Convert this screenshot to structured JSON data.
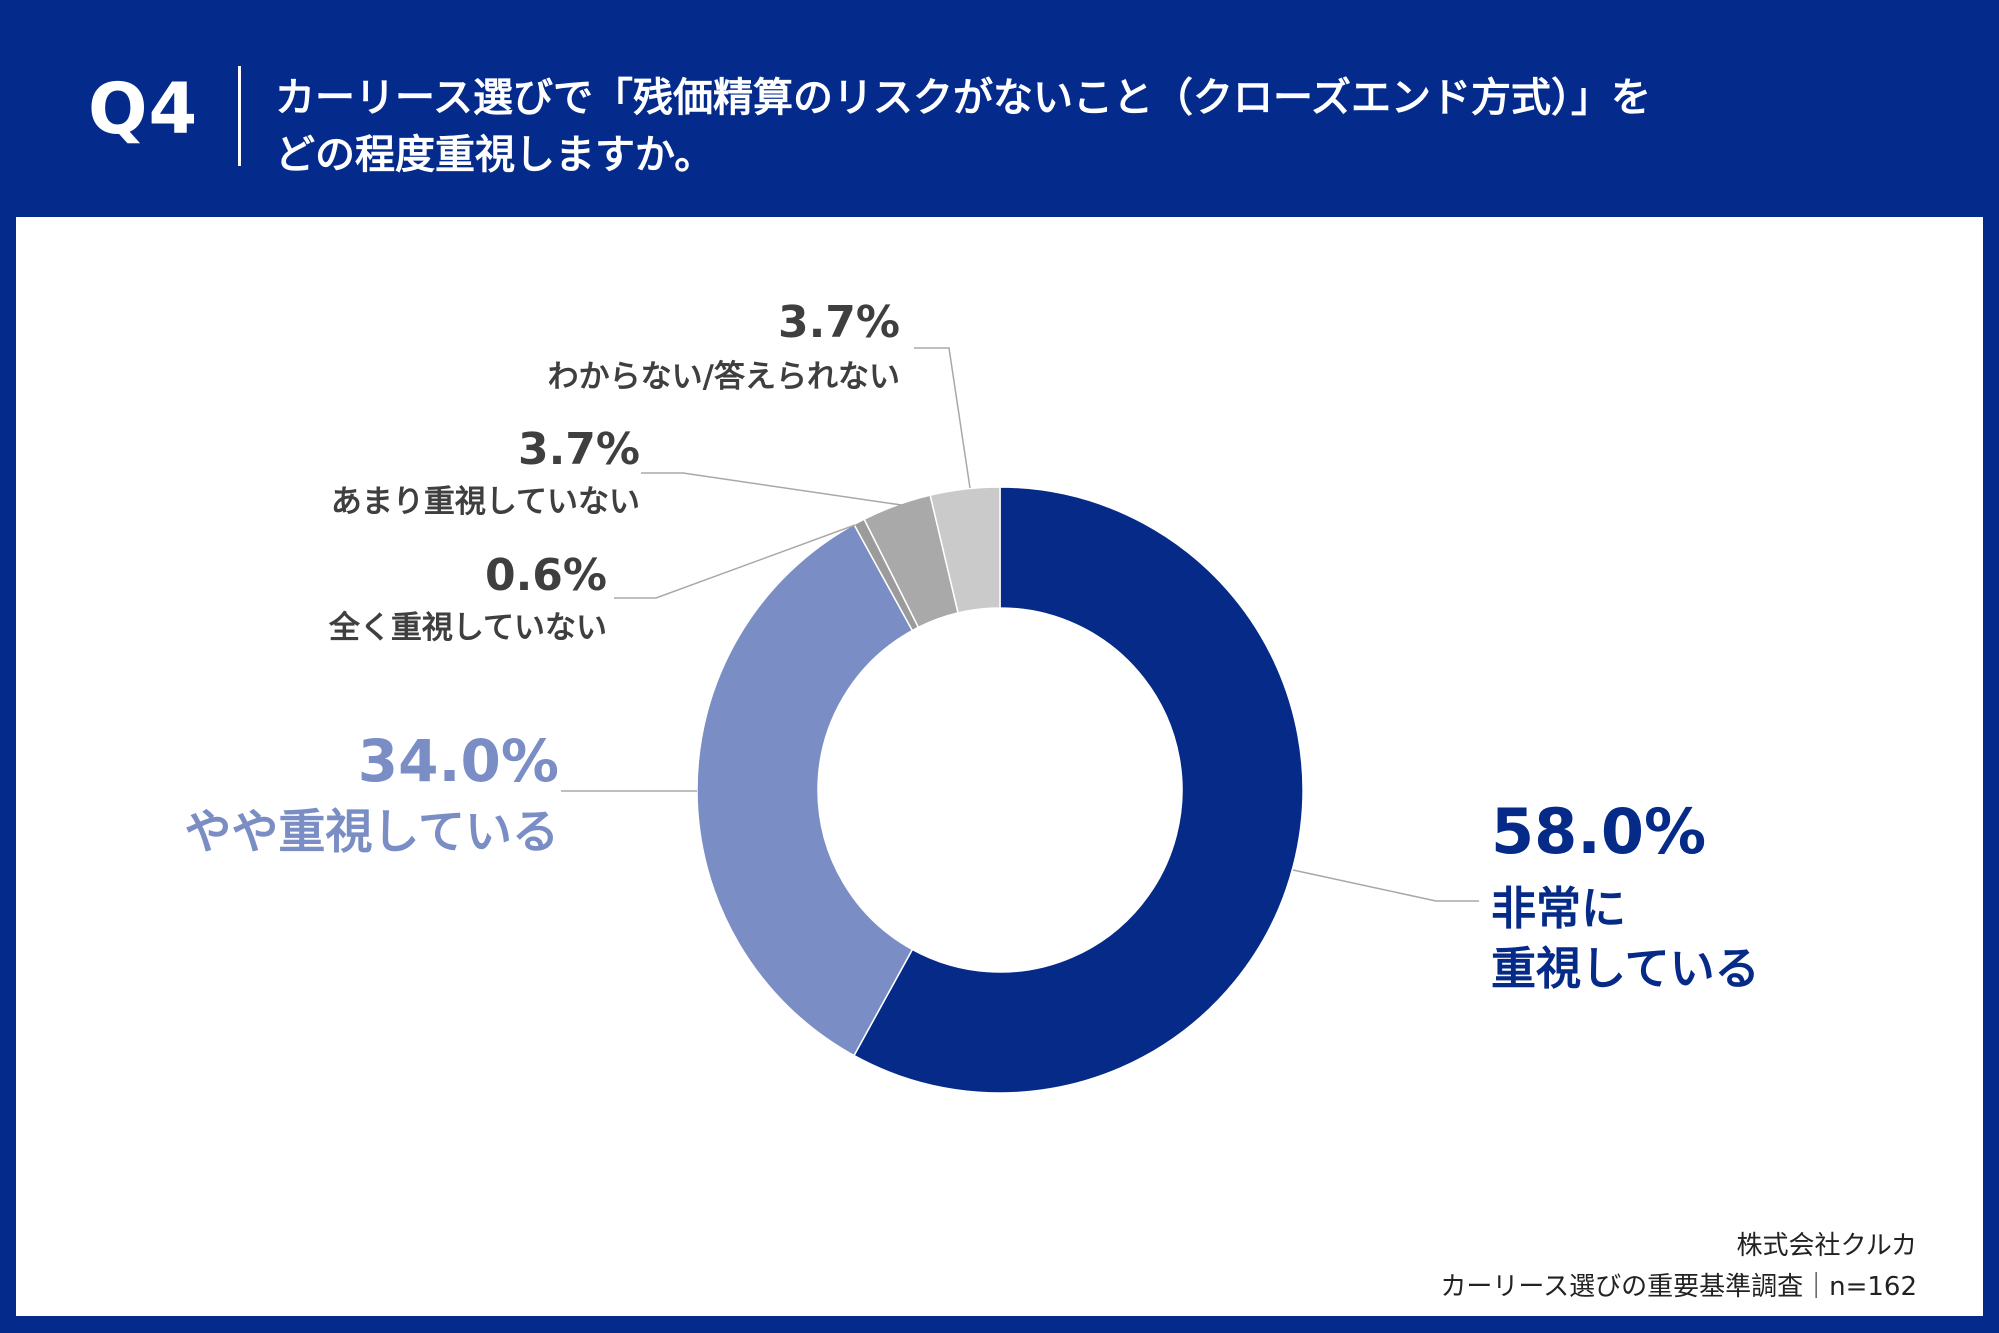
{
  "header": {
    "question_no": "Q4",
    "question_line1": "カーリース選びで「残価精算のリスクがないこと（クローズエンド方式）」を",
    "question_line2": "どの程度重視しますか。"
  },
  "colors": {
    "header_bg": "#042B8C",
    "very": "#052A88",
    "somewhat": "#7A8DC4",
    "not_at_all": "#9B9B9B",
    "not_much": "#A9A9A9",
    "unknown": "#CACACA",
    "leader": "#A8A8A8"
  },
  "chart_data": {
    "type": "pie",
    "donut": true,
    "start_angle_deg": 0,
    "direction": "clockwise",
    "slices": [
      {
        "label": "非常に重視している",
        "label_line1": "非常に",
        "label_line2": "重視している",
        "value": 58.0,
        "value_text": "58.0%",
        "color": "#052A88"
      },
      {
        "label": "やや重視している",
        "value": 34.0,
        "value_text": "34.0%",
        "color": "#7A8DC4"
      },
      {
        "label": "全く重視していない",
        "value": 0.6,
        "value_text": "0.6%",
        "color": "#9B9B9B"
      },
      {
        "label": "あまり重視していない",
        "value": 3.7,
        "value_text": "3.7%",
        "color": "#A9A9A9"
      },
      {
        "label": "わからない/答えられない",
        "value": 3.7,
        "value_text": "3.7%",
        "color": "#CACACA"
      }
    ]
  },
  "source": {
    "company": "株式会社クルカ",
    "survey": "カーリース選びの重要基準調査｜n=162"
  }
}
